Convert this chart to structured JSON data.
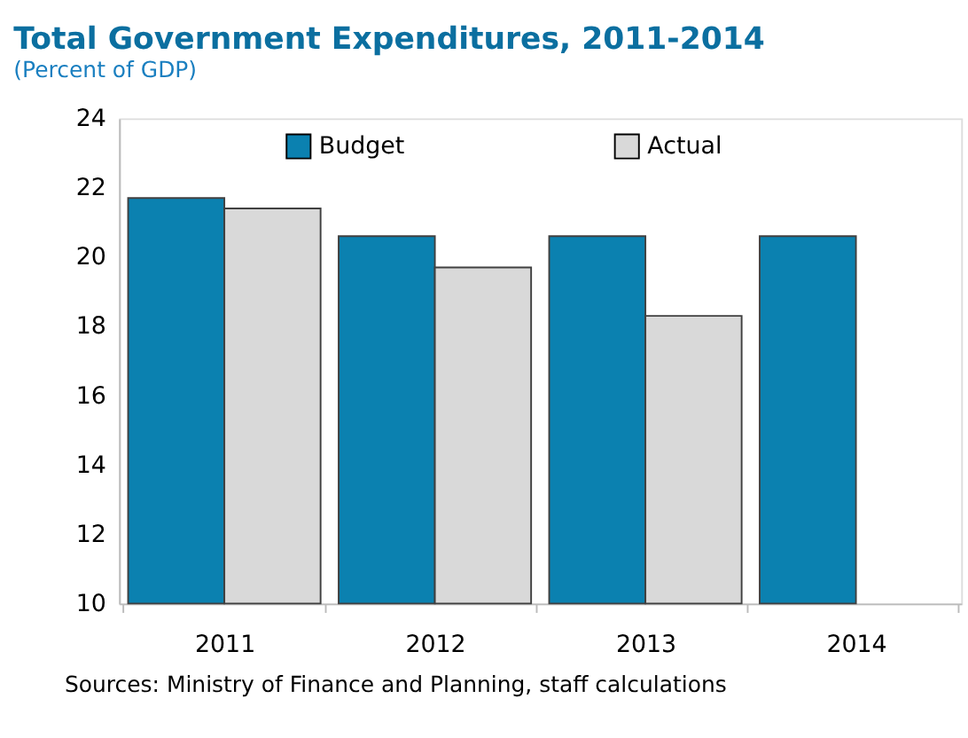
{
  "chart_data": {
    "type": "bar",
    "title": "Total Government Expenditures, 2011-2014",
    "subtitle": "(Percent of GDP)",
    "categories": [
      "2011",
      "2012",
      "2013",
      "2014"
    ],
    "series": [
      {
        "name": "Budget",
        "color": "#0b81b0",
        "values": [
          21.7,
          20.6,
          20.6,
          20.6
        ]
      },
      {
        "name": "Actual",
        "color": "#d9d9d9",
        "values": [
          21.4,
          19.7,
          18.3,
          null
        ]
      }
    ],
    "ylim": [
      10,
      24
    ],
    "yticks": [
      10,
      12,
      14,
      16,
      18,
      20,
      22,
      24
    ],
    "grid": false,
    "legend": "top",
    "annotations": [
      "Sources: Ministry of Finance and Planning, staff calculations"
    ]
  }
}
